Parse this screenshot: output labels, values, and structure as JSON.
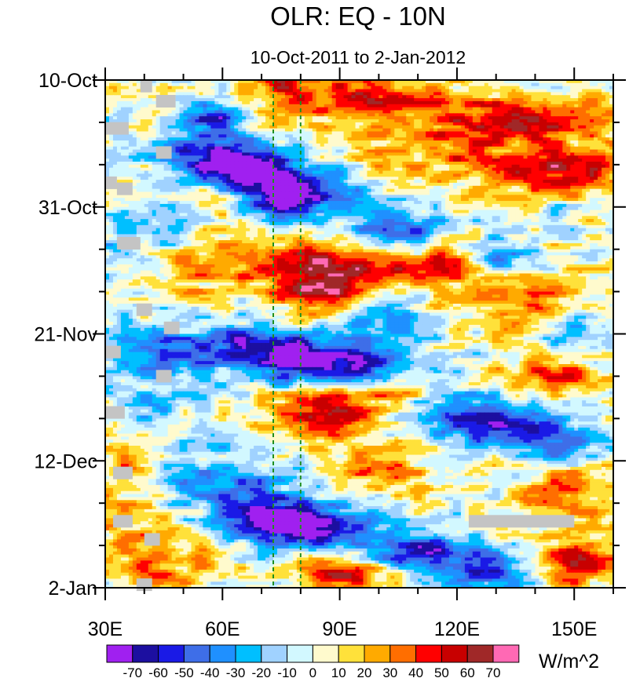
{
  "chart_data": {
    "type": "heatmap",
    "title": "OLR: EQ - 10N",
    "subtitle": "10-Oct-2011 to 2-Jan-2012",
    "xlabel": "",
    "ylabel": "",
    "x_range": [
      30,
      160
    ],
    "x_ticks": [
      {
        "value": 30,
        "label": "30E"
      },
      {
        "value": 60,
        "label": "60E"
      },
      {
        "value": 90,
        "label": "90E"
      },
      {
        "value": 120,
        "label": "120E"
      },
      {
        "value": 150,
        "label": "150E"
      }
    ],
    "y_range_days": [
      0,
      84
    ],
    "y_direction": "time increases downward",
    "y_ticks": [
      {
        "day": 0,
        "label": "10-Oct"
      },
      {
        "day": 21,
        "label": "31-Oct"
      },
      {
        "day": 42,
        "label": "21-Nov"
      },
      {
        "day": 63,
        "label": "12-Dec"
      },
      {
        "day": 84,
        "label": "2-Jan"
      }
    ],
    "reference_lines_lon": [
      73,
      80
    ],
    "reference_line_color": "#1f8f1f",
    "colorbar": {
      "units": "W/m^2",
      "levels": [
        -70,
        -60,
        -50,
        -40,
        -30,
        -20,
        -10,
        0,
        10,
        20,
        30,
        40,
        50,
        60,
        70
      ],
      "level_labels": [
        "-70",
        "-60",
        "-50",
        "-40",
        "-30",
        "-20",
        "-10",
        "0",
        "10",
        "20",
        "30",
        "40",
        "50",
        "60",
        "70"
      ],
      "colors": [
        "#a020f0",
        "#1c0fa0",
        "#1a1ae6",
        "#3e6ee8",
        "#1f90ff",
        "#00bfff",
        "#a0d2ff",
        "#d2f8ff",
        "#fffacd",
        "#ffe13a",
        "#ffaa00",
        "#ff6e00",
        "#ff0000",
        "#c80000",
        "#a02828",
        "#ff69b4"
      ]
    },
    "missing_color": "#c4c4c4",
    "anomaly_features": [
      {
        "lon": 58,
        "day": 6,
        "amp": -55,
        "slon": 5,
        "sday": 2,
        "tilt": 0
      },
      {
        "lon": 62,
        "day": 12,
        "amp": -45,
        "slon": 12,
        "sday": 2.5,
        "tilt": 0.08
      },
      {
        "lon": 65,
        "day": 15,
        "amp": -75,
        "slon": 10,
        "sday": 2,
        "tilt": 0.1
      },
      {
        "lon": 75,
        "day": 20,
        "amp": -65,
        "slon": 6,
        "sday": 2,
        "tilt": 0
      },
      {
        "lon": 85,
        "day": 18,
        "amp": -40,
        "slon": 10,
        "sday": 3,
        "tilt": 0
      },
      {
        "lon": 105,
        "day": 25,
        "amp": -55,
        "slon": 8,
        "sday": 2.5,
        "tilt": 0
      },
      {
        "lon": 130,
        "day": 29,
        "amp": -50,
        "slon": 5,
        "sday": 2,
        "tilt": 0
      },
      {
        "lon": 40,
        "day": 26,
        "amp": -25,
        "slon": 10,
        "sday": 3,
        "tilt": 0
      },
      {
        "lon": 75,
        "day": 45,
        "amp": -75,
        "slon": 15,
        "sday": 2.8,
        "tilt": 0.05
      },
      {
        "lon": 92,
        "day": 48,
        "amp": -45,
        "slon": 14,
        "sday": 2,
        "tilt": -0.05
      },
      {
        "lon": 45,
        "day": 46,
        "amp": -40,
        "slon": 8,
        "sday": 3,
        "tilt": 0
      },
      {
        "lon": 100,
        "day": 40,
        "amp": -30,
        "slon": 8,
        "sday": 2.5,
        "tilt": 0
      },
      {
        "lon": 150,
        "day": 42,
        "amp": -35,
        "slon": 6,
        "sday": 2,
        "tilt": 0
      },
      {
        "lon": 125,
        "day": 56,
        "amp": -65,
        "slon": 14,
        "sday": 3,
        "tilt": 0.08
      },
      {
        "lon": 145,
        "day": 60,
        "amp": -40,
        "slon": 8,
        "sday": 2.5,
        "tilt": 0
      },
      {
        "lon": 40,
        "day": 55,
        "amp": -25,
        "slon": 8,
        "sday": 3,
        "tilt": 0
      },
      {
        "lon": 82,
        "day": 74,
        "amp": -75,
        "slon": 12,
        "sday": 2.5,
        "tilt": 0
      },
      {
        "lon": 70,
        "day": 71,
        "amp": -40,
        "slon": 10,
        "sday": 2.5,
        "tilt": 0
      },
      {
        "lon": 110,
        "day": 78,
        "amp": -55,
        "slon": 12,
        "sday": 2,
        "tilt": 0
      },
      {
        "lon": 130,
        "day": 82,
        "amp": -50,
        "slon": 10,
        "sday": 2,
        "tilt": 0
      },
      {
        "lon": 60,
        "day": 66,
        "amp": -30,
        "slon": 12,
        "sday": 3,
        "tilt": 0
      },
      {
        "lon": 95,
        "day": 3,
        "amp": 45,
        "slon": 15,
        "sday": 3,
        "tilt": 0
      },
      {
        "lon": 135,
        "day": 7,
        "amp": 55,
        "slon": 18,
        "sday": 3,
        "tilt": 0
      },
      {
        "lon": 145,
        "day": 15,
        "amp": 50,
        "slon": 14,
        "sday": 2.5,
        "tilt": 0
      },
      {
        "lon": 75,
        "day": 1,
        "amp": 35,
        "slon": 6,
        "sday": 2,
        "tilt": 0
      },
      {
        "lon": 110,
        "day": 13,
        "amp": 25,
        "slon": 15,
        "sday": 3,
        "tilt": 0
      },
      {
        "lon": 85,
        "day": 35,
        "amp": 65,
        "slon": 8,
        "sday": 3,
        "tilt": 0
      },
      {
        "lon": 80,
        "day": 30,
        "amp": 40,
        "slon": 12,
        "sday": 2.5,
        "tilt": 0
      },
      {
        "lon": 115,
        "day": 30,
        "amp": 40,
        "slon": 10,
        "sday": 2.5,
        "tilt": 0
      },
      {
        "lon": 95,
        "day": 31,
        "amp": 35,
        "slon": 8,
        "sday": 2,
        "tilt": 0
      },
      {
        "lon": 135,
        "day": 36,
        "amp": 35,
        "slon": 12,
        "sday": 3,
        "tilt": 0
      },
      {
        "lon": 85,
        "day": 55,
        "amp": 55,
        "slon": 10,
        "sday": 3,
        "tilt": 0
      },
      {
        "lon": 105,
        "day": 52,
        "amp": 30,
        "slon": 12,
        "sday": 3,
        "tilt": 0
      },
      {
        "lon": 55,
        "day": 30,
        "amp": 30,
        "slon": 8,
        "sday": 4,
        "tilt": 0
      },
      {
        "lon": 145,
        "day": 49,
        "amp": 40,
        "slon": 10,
        "sday": 3,
        "tilt": 0
      },
      {
        "lon": 150,
        "day": 68,
        "amp": 35,
        "slon": 10,
        "sday": 4,
        "tilt": 0
      },
      {
        "lon": 150,
        "day": 80,
        "amp": 60,
        "slon": 8,
        "sday": 2.5,
        "tilt": 0
      },
      {
        "lon": 90,
        "day": 82,
        "amp": 55,
        "slon": 8,
        "sday": 2.5,
        "tilt": 0
      },
      {
        "lon": 45,
        "day": 80,
        "amp": 30,
        "slon": 10,
        "sday": 4,
        "tilt": 0
      },
      {
        "lon": 100,
        "day": 64,
        "amp": 25,
        "slon": 10,
        "sday": 3,
        "tilt": 0
      },
      {
        "lon": 35,
        "day": 66,
        "amp": 25,
        "slon": 6,
        "sday": 8,
        "tilt": 0
      }
    ],
    "missing_segments": [
      {
        "lon_start": 39,
        "lon_end": 42,
        "day": 1
      },
      {
        "lon_start": 43,
        "lon_end": 48,
        "day": 3.5
      },
      {
        "lon_start": 30,
        "lon_end": 36,
        "day": 8
      },
      {
        "lon_start": 43,
        "lon_end": 47,
        "day": 12
      },
      {
        "lon_start": 30,
        "lon_end": 33,
        "day": 17
      },
      {
        "lon_start": 33,
        "lon_end": 37,
        "day": 18
      },
      {
        "lon_start": 33,
        "lon_end": 39,
        "day": 27
      },
      {
        "lon_start": 38,
        "lon_end": 42,
        "day": 38
      },
      {
        "lon_start": 45,
        "lon_end": 49,
        "day": 41
      },
      {
        "lon_start": 30,
        "lon_end": 34,
        "day": 45
      },
      {
        "lon_start": 43,
        "lon_end": 47,
        "day": 49
      },
      {
        "lon_start": 30,
        "lon_end": 35,
        "day": 55
      },
      {
        "lon_start": 32,
        "lon_end": 37,
        "day": 65
      },
      {
        "lon_start": 32,
        "lon_end": 37,
        "day": 73
      },
      {
        "lon_start": 40,
        "lon_end": 44,
        "day": 76
      },
      {
        "lon_start": 38,
        "lon_end": 42,
        "day": 83.5
      },
      {
        "lon_start": 123,
        "lon_end": 150,
        "day": 73
      }
    ]
  }
}
